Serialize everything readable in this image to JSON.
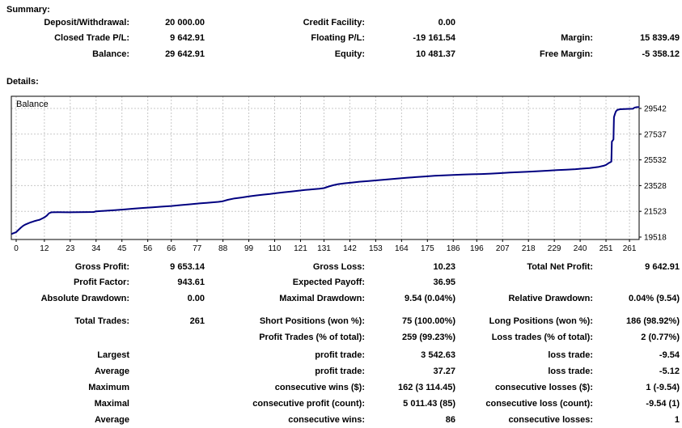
{
  "summary": {
    "title": "Summary:",
    "rows": [
      [
        {
          "label": "Deposit/Withdrawal:",
          "value": "20 000.00"
        },
        {
          "label": "Credit Facility:",
          "value": "0.00"
        },
        {
          "label": "",
          "value": ""
        }
      ],
      [
        {
          "label": "Closed Trade P/L:",
          "value": "9 642.91"
        },
        {
          "label": "Floating P/L:",
          "value": "-19 161.54"
        },
        {
          "label": "Margin:",
          "value": "15 839.49"
        }
      ],
      [
        {
          "label": "Balance:",
          "value": "29 642.91"
        },
        {
          "label": "Equity:",
          "value": "10 481.37"
        },
        {
          "label": "Free Margin:",
          "value": "-5 358.12"
        }
      ]
    ]
  },
  "details": {
    "title": "Details:",
    "groups": [
      [
        [
          {
            "label": "Gross Profit:",
            "value": "9 653.14"
          },
          {
            "label": "Gross Loss:",
            "value": "10.23"
          },
          {
            "label": "Total Net Profit:",
            "value": "9 642.91"
          }
        ],
        [
          {
            "label": "Profit Factor:",
            "value": "943.61"
          },
          {
            "label": "Expected Payoff:",
            "value": "36.95"
          },
          {
            "label": "",
            "value": ""
          }
        ],
        [
          {
            "label": "Absolute Drawdown:",
            "value": "0.00"
          },
          {
            "label": "Maximal Drawdown:",
            "value": "9.54 (0.04%)"
          },
          {
            "label": "Relative Drawdown:",
            "value": "0.04% (9.54)"
          }
        ]
      ],
      [
        [
          {
            "label": "Total Trades:",
            "value": "261"
          },
          {
            "label": "Short Positions (won %):",
            "value": "75 (100.00%)"
          },
          {
            "label": "Long Positions (won %):",
            "value": "186 (98.92%)"
          }
        ],
        [
          {
            "label": "",
            "value": ""
          },
          {
            "label": "Profit Trades (% of total):",
            "value": "259 (99.23%)"
          },
          {
            "label": "Loss trades (% of total):",
            "value": "2 (0.77%)"
          }
        ]
      ],
      [
        [
          {
            "label": "Largest",
            "value": ""
          },
          {
            "label": "profit trade:",
            "value": "3 542.63"
          },
          {
            "label": "loss trade:",
            "value": "-9.54"
          }
        ],
        [
          {
            "label": "Average",
            "value": ""
          },
          {
            "label": "profit trade:",
            "value": "37.27"
          },
          {
            "label": "loss trade:",
            "value": "-5.12"
          }
        ],
        [
          {
            "label": "Maximum",
            "value": ""
          },
          {
            "label": "consecutive wins ($):",
            "value": "162 (3 114.45)"
          },
          {
            "label": "consecutive losses ($):",
            "value": "1 (-9.54)"
          }
        ],
        [
          {
            "label": "Maximal",
            "value": ""
          },
          {
            "label": "consecutive profit (count):",
            "value": "5 011.43 (85)"
          },
          {
            "label": "consecutive loss (count):",
            "value": "-9.54 (1)"
          }
        ],
        [
          {
            "label": "Average",
            "value": ""
          },
          {
            "label": "consecutive wins:",
            "value": "86"
          },
          {
            "label": "consecutive losses:",
            "value": "1"
          }
        ]
      ]
    ]
  },
  "chart_data": {
    "type": "line",
    "title": "Balance",
    "xlabel": "",
    "ylabel": "",
    "x_ticks": [
      0,
      12,
      23,
      34,
      45,
      56,
      66,
      77,
      88,
      99,
      110,
      121,
      131,
      142,
      153,
      164,
      175,
      186,
      196,
      207,
      218,
      229,
      240,
      251,
      261
    ],
    "y_ticks": [
      19518,
      21523,
      23528,
      25532,
      27537,
      29542
    ],
    "xlim": [
      -2,
      265.2
    ],
    "ylim": [
      19330,
      30490
    ],
    "grid": true,
    "line_color": "#000080",
    "grid_color": "#c8c8c8",
    "border_color": "#000000",
    "series": [
      {
        "name": "Balance",
        "points": [
          [
            -2,
            19760
          ],
          [
            0,
            19900
          ],
          [
            1,
            20080
          ],
          [
            2,
            20250
          ],
          [
            3,
            20400
          ],
          [
            4,
            20500
          ],
          [
            5,
            20580
          ],
          [
            6,
            20650
          ],
          [
            7,
            20710
          ],
          [
            8,
            20770
          ],
          [
            9,
            20820
          ],
          [
            10,
            20870
          ],
          [
            11,
            20960
          ],
          [
            12,
            21050
          ],
          [
            13,
            21180
          ],
          [
            14,
            21380
          ],
          [
            15,
            21450
          ],
          [
            18,
            21455
          ],
          [
            22,
            21450
          ],
          [
            26,
            21455
          ],
          [
            30,
            21465
          ],
          [
            33,
            21475
          ],
          [
            34,
            21520
          ],
          [
            38,
            21570
          ],
          [
            42,
            21620
          ],
          [
            46,
            21670
          ],
          [
            50,
            21730
          ],
          [
            54,
            21790
          ],
          [
            58,
            21840
          ],
          [
            62,
            21890
          ],
          [
            66,
            21940
          ],
          [
            70,
            22010
          ],
          [
            74,
            22070
          ],
          [
            78,
            22140
          ],
          [
            82,
            22200
          ],
          [
            86,
            22260
          ],
          [
            88,
            22310
          ],
          [
            90,
            22420
          ],
          [
            93,
            22530
          ],
          [
            96,
            22600
          ],
          [
            99,
            22680
          ],
          [
            102,
            22760
          ],
          [
            105,
            22820
          ],
          [
            108,
            22880
          ],
          [
            111,
            22950
          ],
          [
            114,
            23010
          ],
          [
            117,
            23070
          ],
          [
            120,
            23130
          ],
          [
            123,
            23190
          ],
          [
            126,
            23240
          ],
          [
            129,
            23290
          ],
          [
            131,
            23330
          ],
          [
            133,
            23460
          ],
          [
            135,
            23560
          ],
          [
            137,
            23640
          ],
          [
            140,
            23710
          ],
          [
            143,
            23770
          ],
          [
            146,
            23830
          ],
          [
            150,
            23890
          ],
          [
            154,
            23950
          ],
          [
            158,
            24010
          ],
          [
            162,
            24070
          ],
          [
            166,
            24130
          ],
          [
            170,
            24190
          ],
          [
            174,
            24240
          ],
          [
            178,
            24290
          ],
          [
            182,
            24330
          ],
          [
            186,
            24360
          ],
          [
            190,
            24390
          ],
          [
            194,
            24410
          ],
          [
            198,
            24430
          ],
          [
            202,
            24460
          ],
          [
            206,
            24500
          ],
          [
            210,
            24540
          ],
          [
            214,
            24580
          ],
          [
            218,
            24610
          ],
          [
            222,
            24650
          ],
          [
            226,
            24690
          ],
          [
            230,
            24730
          ],
          [
            234,
            24770
          ],
          [
            238,
            24810
          ],
          [
            241,
            24850
          ],
          [
            244,
            24890
          ],
          [
            246,
            24940
          ],
          [
            248,
            24990
          ],
          [
            250,
            25070
          ],
          [
            251,
            25140
          ],
          [
            252,
            25270
          ],
          [
            253,
            25370
          ],
          [
            253.3,
            25400
          ],
          [
            253.5,
            26950
          ],
          [
            253.9,
            27060
          ],
          [
            254.2,
            27130
          ],
          [
            254.4,
            28860
          ],
          [
            254.8,
            29110
          ],
          [
            255.2,
            29310
          ],
          [
            255.8,
            29420
          ],
          [
            257,
            29480
          ],
          [
            259,
            29500
          ],
          [
            261,
            29510
          ],
          [
            262.5,
            29520
          ],
          [
            263,
            29590
          ],
          [
            263.6,
            29625
          ],
          [
            264.2,
            29643
          ],
          [
            265.2,
            29645
          ]
        ]
      }
    ]
  }
}
